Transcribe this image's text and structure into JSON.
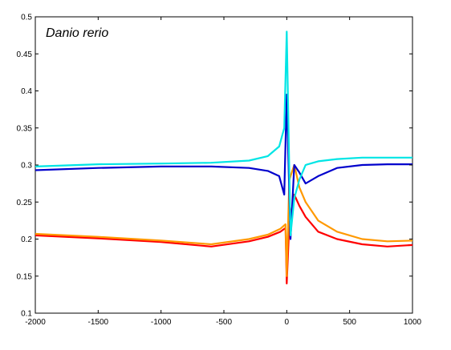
{
  "chart_data": {
    "type": "line",
    "title": "Danio rerio",
    "xlabel": "",
    "ylabel": "",
    "xlim": [
      -2000,
      1000
    ],
    "ylim": [
      0.1,
      0.5
    ],
    "grid": false,
    "legend": "none",
    "x_ticks": [
      -2000,
      -1500,
      -1000,
      -500,
      0,
      500,
      1000
    ],
    "x_tick_labels": [
      "-2000",
      "-1500",
      "-1000",
      "-500",
      "0",
      "500",
      "1000"
    ],
    "y_ticks": [
      0.1,
      0.15,
      0.2,
      0.25,
      0.3,
      0.35,
      0.4,
      0.45,
      0.5
    ],
    "y_tick_labels": [
      "0.1",
      "0.15",
      "0.2",
      "0.25",
      "0.3",
      "0.35",
      "0.4",
      "0.45",
      "0.5"
    ],
    "series": [
      {
        "color": "#ff0000",
        "x": [
          -2000,
          -1500,
          -1000,
          -600,
          -300,
          -150,
          -50,
          -10,
          0,
          20,
          60,
          100,
          150,
          250,
          400,
          600,
          800,
          1000
        ],
        "y": [
          0.205,
          0.201,
          0.196,
          0.19,
          0.197,
          0.203,
          0.21,
          0.215,
          0.14,
          0.22,
          0.26,
          0.245,
          0.23,
          0.21,
          0.2,
          0.193,
          0.19,
          0.192
        ]
      },
      {
        "color": "#ff9900",
        "x": [
          -2000,
          -1500,
          -1000,
          -600,
          -300,
          -150,
          -50,
          -10,
          0,
          20,
          60,
          100,
          150,
          250,
          400,
          600,
          800,
          1000
        ],
        "y": [
          0.207,
          0.203,
          0.198,
          0.193,
          0.2,
          0.206,
          0.214,
          0.22,
          0.15,
          0.28,
          0.3,
          0.27,
          0.25,
          0.225,
          0.21,
          0.2,
          0.197,
          0.198
        ]
      },
      {
        "color": "#0000cc",
        "x": [
          -2000,
          -1500,
          -1000,
          -600,
          -300,
          -150,
          -60,
          -20,
          0,
          30,
          60,
          100,
          150,
          250,
          400,
          600,
          800,
          1000
        ],
        "y": [
          0.293,
          0.296,
          0.298,
          0.298,
          0.296,
          0.292,
          0.285,
          0.26,
          0.395,
          0.2,
          0.3,
          0.29,
          0.275,
          0.285,
          0.296,
          0.3,
          0.301,
          0.301
        ]
      },
      {
        "color": "#00e5e5",
        "x": [
          -2000,
          -1500,
          -1000,
          -600,
          -300,
          -150,
          -60,
          -20,
          0,
          30,
          60,
          100,
          150,
          250,
          400,
          600,
          800,
          1000
        ],
        "y": [
          0.298,
          0.301,
          0.302,
          0.303,
          0.306,
          0.312,
          0.325,
          0.35,
          0.48,
          0.205,
          0.255,
          0.28,
          0.3,
          0.305,
          0.308,
          0.31,
          0.31,
          0.31
        ]
      }
    ]
  }
}
